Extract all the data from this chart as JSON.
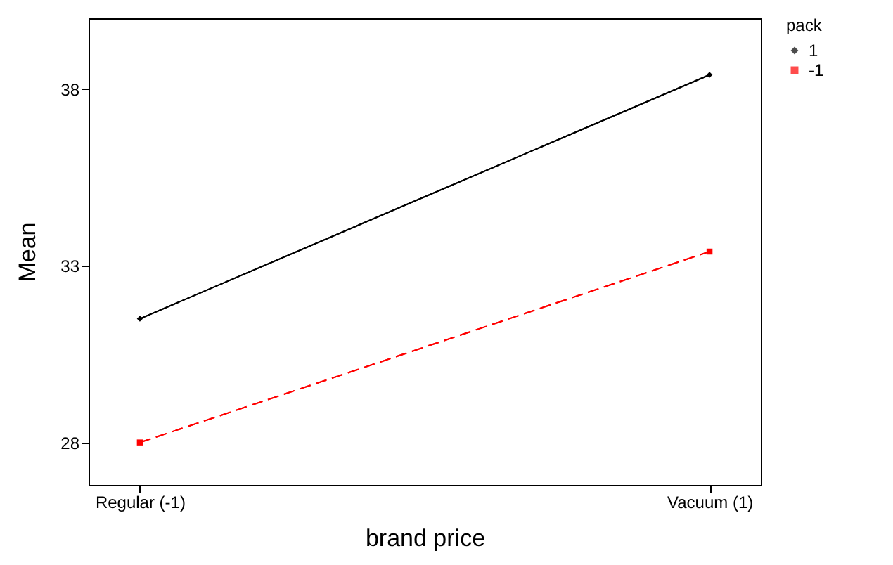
{
  "chart_data": {
    "type": "line",
    "xlabel": "brand price",
    "ylabel": "Mean",
    "legend_title": "pack",
    "categories": [
      "Regular (-1)",
      "Vacuum (1)"
    ],
    "series": [
      {
        "name": "1",
        "color": "#000000",
        "values": [
          31.5,
          38.4
        ],
        "line_style": "solid",
        "marker": "diamond"
      },
      {
        "name": "-1",
        "color": "#ff0000",
        "values": [
          28.0,
          33.4
        ],
        "line_style": "dashed",
        "marker": "square"
      }
    ],
    "ylim": [
      26.8,
      40.0
    ],
    "yticks": [
      28,
      33,
      38
    ],
    "grid": false,
    "legend": "top right"
  }
}
